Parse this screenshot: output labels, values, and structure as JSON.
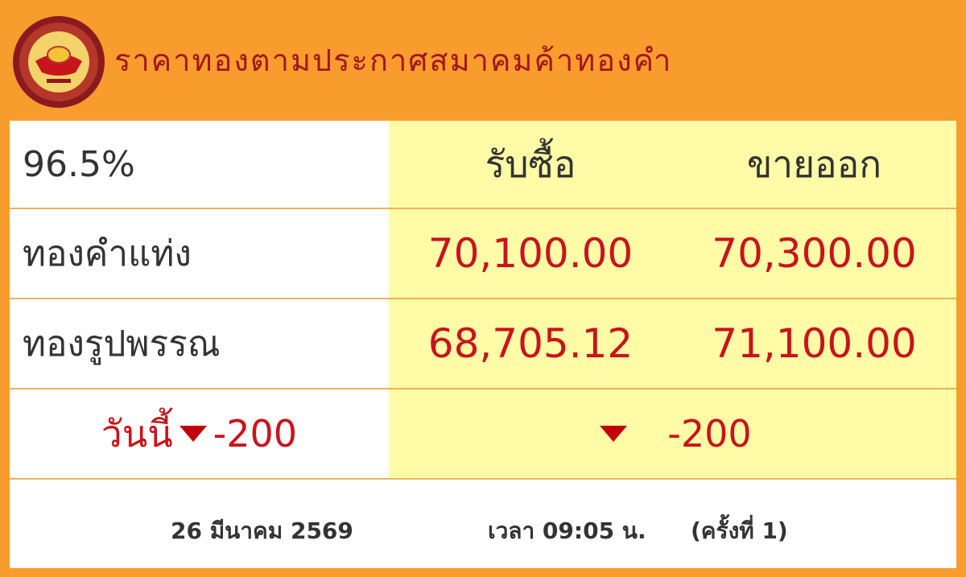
{
  "header": {
    "title": "ราคาทองตามประกาศสมาคมค้าทองคำ",
    "logo": "gold-traders-association-logo"
  },
  "table": {
    "purity": "96.5%",
    "columns": {
      "buy": "รับซื้อ",
      "sell": "ขายออก"
    },
    "rows": [
      {
        "label": "ทองคำแท่ง",
        "buy": "70,100.00",
        "sell": "70,300.00"
      },
      {
        "label": "ทองรูปพรรณ",
        "buy": "68,705.12",
        "sell": "71,100.00"
      }
    ],
    "change": {
      "label": "วันนี้",
      "left_value": "-200",
      "right_value": "-200",
      "direction": "down",
      "color": "#c8141c"
    }
  },
  "footer": {
    "date": "26 มีนาคม 2569",
    "time": "เวลา 09:05 น.",
    "round": "(ครั้งที่ 1)"
  },
  "colors": {
    "background": "#f89c2e",
    "highlight": "#fffba6",
    "price": "#c8141c"
  }
}
